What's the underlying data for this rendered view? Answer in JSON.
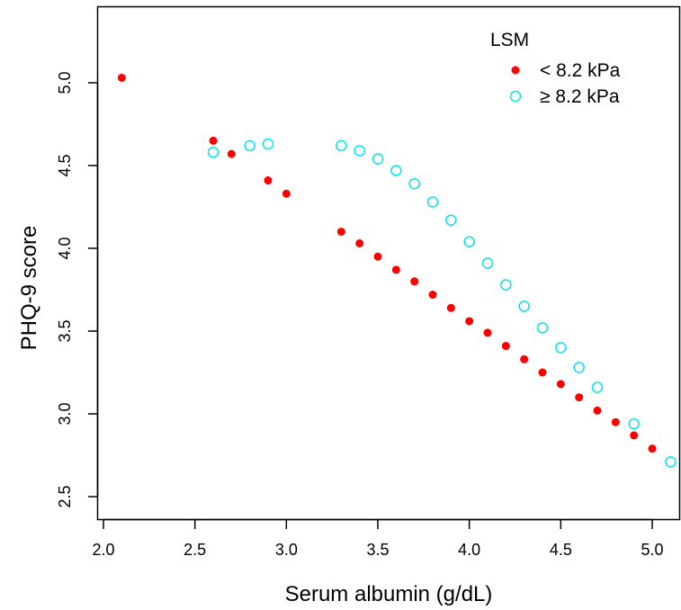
{
  "chart_data": {
    "type": "scatter",
    "title": "",
    "xlabel": "Serum albumin (g/dL)",
    "ylabel": "PHQ-9 score",
    "xlim": [
      1.96,
      5.15
    ],
    "ylim": [
      2.36,
      5.47
    ],
    "xticks": [
      2.0,
      2.5,
      3.0,
      3.5,
      4.0,
      4.5,
      5.0
    ],
    "xtick_labels": [
      "2.0",
      "2.5",
      "3.0",
      "3.5",
      "4.0",
      "4.5",
      "5.0"
    ],
    "yticks": [
      2.5,
      3.0,
      3.5,
      4.0,
      4.5,
      5.0
    ],
    "ytick_labels": [
      "2.5",
      "3.0",
      "3.5",
      "4.0",
      "4.5",
      "5.0"
    ],
    "grid": false,
    "legend": {
      "title": "LSM",
      "placement": "top-right"
    },
    "series": [
      {
        "name": "< 8.2 kPa",
        "marker": "filled-circle",
        "color": "#ff0000",
        "x": [
          2.1,
          2.6,
          2.7,
          2.9,
          3.0,
          3.3,
          3.4,
          3.5,
          3.6,
          3.7,
          3.8,
          3.9,
          4.0,
          4.1,
          4.2,
          4.3,
          4.4,
          4.5,
          4.6,
          4.7,
          4.8,
          4.9,
          5.0
        ],
        "y": [
          5.03,
          4.65,
          4.57,
          4.41,
          4.33,
          4.1,
          4.03,
          3.95,
          3.87,
          3.8,
          3.72,
          3.64,
          3.56,
          3.49,
          3.41,
          3.33,
          3.25,
          3.18,
          3.1,
          3.02,
          2.95,
          2.87,
          2.79
        ]
      },
      {
        "name": "≥ 8.2 kPa",
        "marker": "open-circle",
        "color": "#00e5ee",
        "x": [
          2.6,
          2.8,
          2.9,
          3.3,
          3.4,
          3.5,
          3.6,
          3.7,
          3.8,
          3.9,
          4.0,
          4.1,
          4.2,
          4.3,
          4.4,
          4.5,
          4.6,
          4.7,
          4.9,
          5.1
        ],
        "y": [
          4.58,
          4.62,
          4.63,
          4.62,
          4.59,
          4.54,
          4.47,
          4.39,
          4.28,
          4.17,
          4.04,
          3.91,
          3.78,
          3.65,
          3.52,
          3.4,
          3.28,
          3.16,
          2.94,
          2.71
        ]
      }
    ]
  }
}
